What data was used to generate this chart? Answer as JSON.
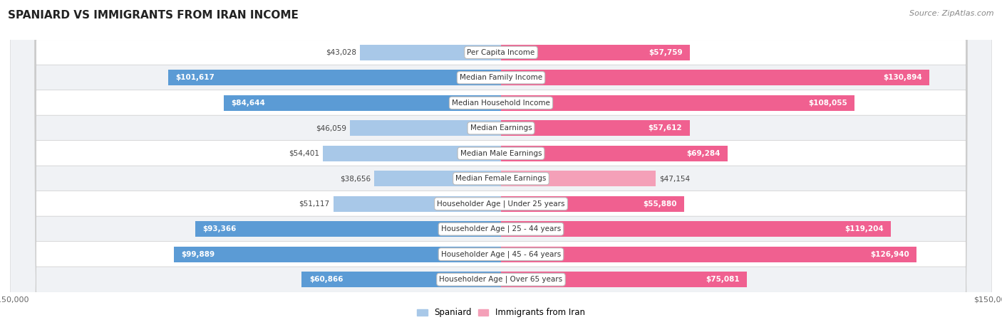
{
  "title": "SPANIARD VS IMMIGRANTS FROM IRAN INCOME",
  "source": "Source: ZipAtlas.com",
  "categories": [
    "Per Capita Income",
    "Median Family Income",
    "Median Household Income",
    "Median Earnings",
    "Median Male Earnings",
    "Median Female Earnings",
    "Householder Age | Under 25 years",
    "Householder Age | 25 - 44 years",
    "Householder Age | 45 - 64 years",
    "Householder Age | Over 65 years"
  ],
  "spaniard_values": [
    43028,
    101617,
    84644,
    46059,
    54401,
    38656,
    51117,
    93366,
    99889,
    60866
  ],
  "iran_values": [
    57759,
    130894,
    108055,
    57612,
    69284,
    47154,
    55880,
    119204,
    126940,
    75081
  ],
  "spaniard_labels": [
    "$43,028",
    "$101,617",
    "$84,644",
    "$46,059",
    "$54,401",
    "$38,656",
    "$51,117",
    "$93,366",
    "$99,889",
    "$60,866"
  ],
  "iran_labels": [
    "$57,759",
    "$130,894",
    "$108,055",
    "$57,612",
    "$69,284",
    "$47,154",
    "$55,880",
    "$119,204",
    "$126,940",
    "$75,081"
  ],
  "max_val": 150000,
  "spaniard_color_light": "#a8c8e8",
  "spaniard_color_dark": "#5b9bd5",
  "iran_color_light": "#f4a0b8",
  "iran_color_dark": "#f06090",
  "row_colors": [
    "#ffffff",
    "#f0f2f5"
  ],
  "label_inside_color": "#ffffff",
  "label_outside_color": "#444444",
  "legend_spaniard": "Spaniard",
  "legend_iran": "Immigrants from Iran",
  "inside_threshold": 55000
}
